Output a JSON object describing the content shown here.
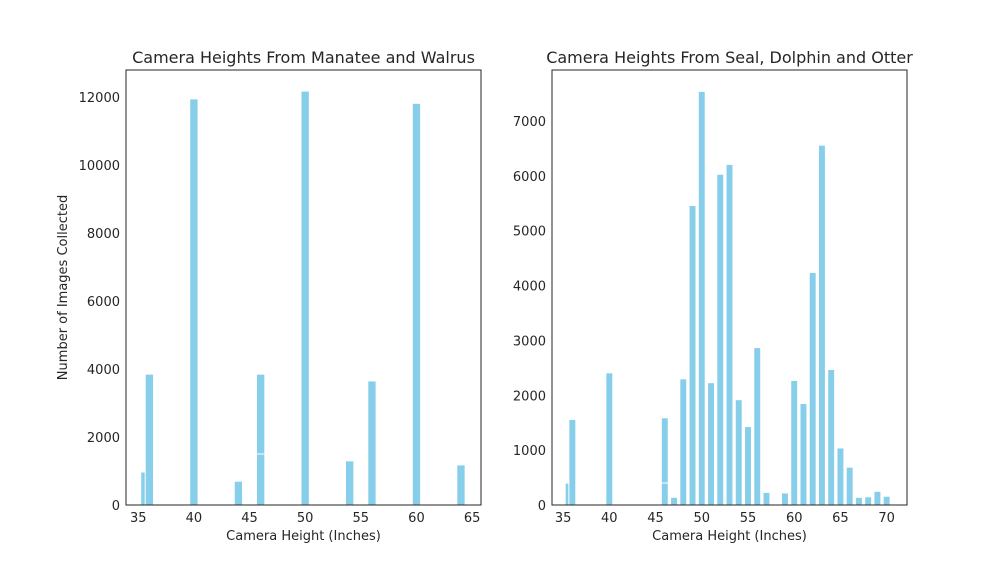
{
  "chart_data": [
    {
      "type": "bar",
      "title": "Camera Heights From Manatee and Walrus",
      "x_label": "Camera Height (Inches)",
      "y_label": "Number of Images Collected",
      "x": [
        35.6,
        36,
        40,
        44,
        46,
        46,
        50,
        54,
        56,
        60,
        64
      ],
      "values": [
        970,
        3850,
        11950,
        700,
        3850,
        1500,
        12180,
        1300,
        3650,
        11820,
        1180
      ],
      "color": "#87ceeb",
      "xlim": [
        33.9,
        65.8
      ],
      "xticks": [
        35,
        40,
        45,
        50,
        55,
        60,
        65
      ],
      "ylim": [
        0,
        12800
      ],
      "yticks": [
        0,
        2000,
        4000,
        6000,
        8000,
        10000,
        12000
      ]
    },
    {
      "type": "bar",
      "title": "Camera Heights From Seal, Dolphin and Otter",
      "x_label": "Camera Height (Inches)",
      "x": [
        35.6,
        36,
        40,
        46,
        46,
        47,
        48,
        49,
        50,
        51,
        52,
        53,
        54,
        55,
        56,
        57,
        59,
        60,
        61,
        62,
        63,
        64,
        65,
        66,
        67,
        68,
        69,
        70
      ],
      "values": [
        400,
        1560,
        2410,
        1590,
        400,
        140,
        2300,
        5460,
        7540,
        2230,
        6030,
        6210,
        1920,
        1430,
        2870,
        230,
        220,
        2270,
        1850,
        4240,
        6560,
        2470,
        1040,
        690,
        140,
        150,
        250,
        160
      ],
      "color": "#87ceeb",
      "xlim": [
        33.8,
        72.2
      ],
      "xticks": [
        35,
        40,
        45,
        50,
        55,
        60,
        65,
        70
      ],
      "ylim": [
        0,
        7930
      ],
      "yticks": [
        0,
        1000,
        2000,
        3000,
        4000,
        5000,
        6000,
        7000
      ]
    }
  ]
}
